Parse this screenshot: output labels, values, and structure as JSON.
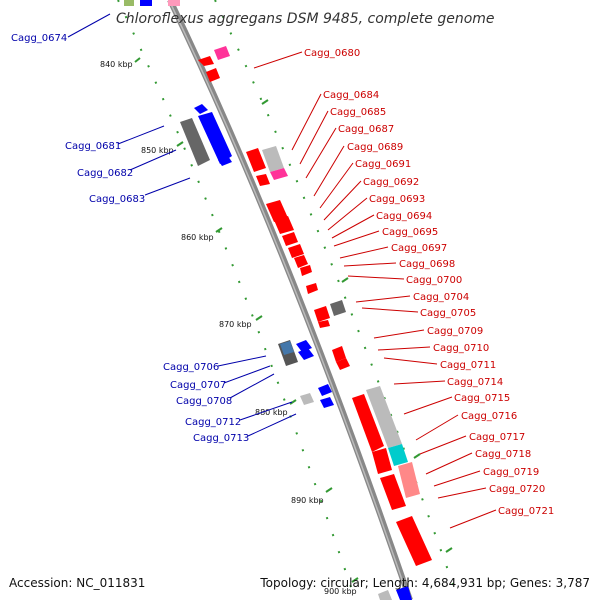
{
  "title": "Chloroflexus aggregans DSM 9485, complete genome",
  "accession": "Accession: NC_011831",
  "summary": "Topology: circular; Length: 4,684,931 bp; Genes: 3,787",
  "ticks": [
    "840 kbp",
    "850 kbp",
    "860 kbp",
    "870 kbp",
    "880 kbp",
    "890 kbp",
    "900 kbp"
  ],
  "labels_left": [
    "Cagg_0674",
    "Cagg_0681",
    "Cagg_0682",
    "Cagg_0683",
    "Cagg_0706",
    "Cagg_0707",
    "Cagg_0708",
    "Cagg_0712",
    "Cagg_0713"
  ],
  "labels_right": [
    "Cagg_0680",
    "Cagg_0684",
    "Cagg_0685",
    "Cagg_0687",
    "Cagg_0689",
    "Cagg_0691",
    "Cagg_0692",
    "Cagg_0693",
    "Cagg_0694",
    "Cagg_0695",
    "Cagg_0697",
    "Cagg_0698",
    "Cagg_0700",
    "Cagg_0704",
    "Cagg_0705",
    "Cagg_0709",
    "Cagg_0710",
    "Cagg_0711",
    "Cagg_0714",
    "Cagg_0715",
    "Cagg_0716",
    "Cagg_0717",
    "Cagg_0718",
    "Cagg_0719",
    "Cagg_0720",
    "Cagg_0721"
  ],
  "colors": {
    "backbone": "#888888",
    "forward_gene": "#ff0000",
    "reverse_gene": "#0000ff",
    "gray_gene": "#666666",
    "light_gray_gene": "#bbbbbb",
    "pink_gene": "#ff66aa",
    "teal_gene": "#00cccc",
    "salmon_gene": "#ff8888",
    "tick_dots": "#339933",
    "label_red": "#cc0000",
    "label_blue": "#0000aa"
  }
}
